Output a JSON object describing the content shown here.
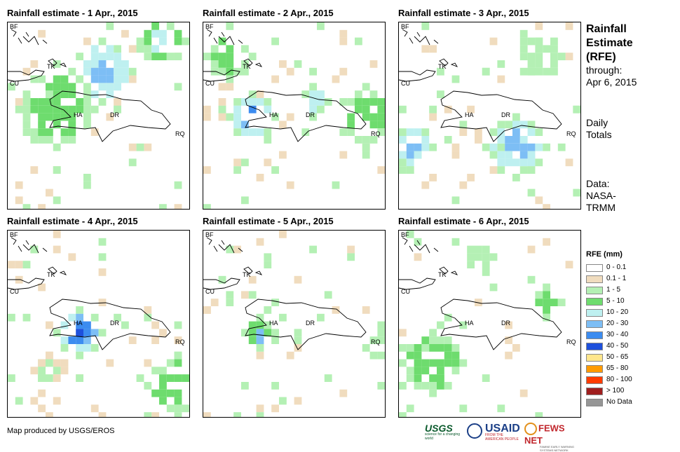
{
  "panels": [
    {
      "title": "Rainfall estimate - 1 Apr., 2015"
    },
    {
      "title": "Rainfall estimate - 2 Apr., 2015"
    },
    {
      "title": "Rainfall estimate - 3 Apr., 2015"
    },
    {
      "title": "Rainfall estimate - 4 Apr., 2015"
    },
    {
      "title": "Rainfall estimate - 5 Apr., 2015"
    },
    {
      "title": "Rainfall estimate - 6 Apr., 2015"
    }
  ],
  "map_labels": {
    "bf": "BF",
    "cu": "CU",
    "tk": "TK",
    "ha": "HA",
    "dr": "DR",
    "rq": "RQ"
  },
  "sidebar": {
    "title_line1": "Rainfall",
    "title_line2": "Estimate",
    "title_line3": "(RFE)",
    "through_label": "through:",
    "through_date": "Apr 6, 2015",
    "totals_line1": "Daily",
    "totals_line2": "Totals",
    "data_label": "Data:",
    "data_source_line1": "NASA-",
    "data_source_line2": "TRMM"
  },
  "legend": {
    "title": "RFE (mm)",
    "items": [
      {
        "label": "0 - 0.1",
        "color": "#ffffff"
      },
      {
        "label": "0.1 - 1",
        "color": "#f0dcbe"
      },
      {
        "label": "1 - 5",
        "color": "#b4f0b4"
      },
      {
        "label": "5 - 10",
        "color": "#6edc6e"
      },
      {
        "label": "10 - 20",
        "color": "#bef0f0"
      },
      {
        "label": "20 - 30",
        "color": "#7dbef5"
      },
      {
        "label": "30 - 40",
        "color": "#3c8cf0"
      },
      {
        "label": "40 - 50",
        "color": "#1e50dc"
      },
      {
        "label": "50 - 65",
        "color": "#ffe68c"
      },
      {
        "label": "65 - 80",
        "color": "#ff9b00"
      },
      {
        "label": "80 - 100",
        "color": "#ff3c00"
      },
      {
        "label": "> 100",
        "color": "#a01e1e"
      },
      {
        "label": "No Data",
        "color": "#969696"
      }
    ]
  },
  "footer": {
    "credit": "Map produced by USGS/EROS",
    "logo_usgs": "USGS",
    "logo_usgs_tagline": "science for a changing world",
    "logo_usaid": "USAID",
    "logo_usaid_tagline": "FROM THE AMERICAN PEOPLE",
    "logo_fews": "FEWS NET",
    "logo_fews_tagline": "FAMINE EARLY WARNING SYSTEMS NETWORK"
  }
}
